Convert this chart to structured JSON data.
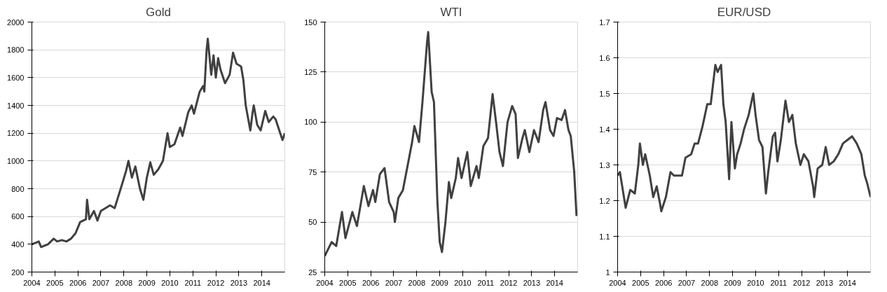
{
  "chart_data": [
    {
      "type": "line",
      "title": "Gold",
      "xlim": [
        2004,
        2015
      ],
      "xticks": [
        2004,
        2005,
        2006,
        2007,
        2008,
        2009,
        2010,
        2011,
        2012,
        2013,
        2014
      ],
      "ylim": [
        200,
        2000
      ],
      "yticks": [
        200,
        400,
        600,
        800,
        1000,
        1200,
        1400,
        1600,
        1800,
        2000
      ],
      "grid": "y",
      "series": [
        {
          "color": "#404040",
          "x": [
            2004,
            2004.3,
            2004.4,
            2004.7,
            2004.95,
            2005.1,
            2005.3,
            2005.5,
            2005.7,
            2005.9,
            2006.1,
            2006.35,
            2006.4,
            2006.5,
            2006.7,
            2006.85,
            2007.0,
            2007.2,
            2007.4,
            2007.6,
            2007.75,
            2007.9,
            2008.1,
            2008.2,
            2008.35,
            2008.5,
            2008.6,
            2008.7,
            2008.85,
            2009.0,
            2009.15,
            2009.3,
            2009.5,
            2009.7,
            2009.9,
            2010.0,
            2010.2,
            2010.45,
            2010.55,
            2010.8,
            2010.95,
            2011.05,
            2011.3,
            2011.45,
            2011.5,
            2011.6,
            2011.65,
            2011.8,
            2011.9,
            2012.0,
            2012.1,
            2012.2,
            2012.4,
            2012.6,
            2012.75,
            2012.9,
            2013.1,
            2013.2,
            2013.3,
            2013.5,
            2013.6,
            2013.65,
            2013.8,
            2013.95,
            2014.15,
            2014.3,
            2014.5,
            2014.6,
            2014.8,
            2014.9,
            2015.0
          ],
          "values": [
            400,
            420,
            380,
            400,
            440,
            420,
            430,
            420,
            440,
            480,
            560,
            580,
            720,
            580,
            640,
            570,
            640,
            660,
            680,
            660,
            740,
            820,
            930,
            1000,
            880,
            960,
            880,
            800,
            720,
            880,
            990,
            900,
            940,
            1000,
            1200,
            1100,
            1120,
            1240,
            1180,
            1350,
            1400,
            1340,
            1500,
            1540,
            1500,
            1800,
            1880,
            1620,
            1760,
            1600,
            1740,
            1660,
            1560,
            1620,
            1780,
            1700,
            1680,
            1580,
            1400,
            1220,
            1350,
            1400,
            1260,
            1220,
            1360,
            1280,
            1320,
            1300,
            1200,
            1150,
            1200
          ]
        }
      ]
    },
    {
      "type": "line",
      "title": "WTI",
      "xlim": [
        2004,
        2015
      ],
      "xticks": [
        2004,
        2005,
        2006,
        2007,
        2008,
        2009,
        2010,
        2011,
        2012,
        2013,
        2014
      ],
      "ylim": [
        25,
        150
      ],
      "yticks": [
        25,
        50,
        75,
        100,
        125,
        150
      ],
      "grid": "y",
      "series": [
        {
          "color": "#404040",
          "x": [
            2004,
            2004.3,
            2004.5,
            2004.75,
            2004.9,
            2005.2,
            2005.4,
            2005.7,
            2005.9,
            2006.1,
            2006.2,
            2006.4,
            2006.6,
            2006.8,
            2007.0,
            2007.05,
            2007.2,
            2007.4,
            2007.6,
            2007.8,
            2007.9,
            2008.1,
            2008.25,
            2008.45,
            2008.5,
            2008.65,
            2008.75,
            2008.9,
            2009.0,
            2009.1,
            2009.25,
            2009.4,
            2009.5,
            2009.7,
            2009.8,
            2009.95,
            2010.2,
            2010.35,
            2010.6,
            2010.7,
            2010.9,
            2011.1,
            2011.3,
            2011.45,
            2011.6,
            2011.75,
            2011.95,
            2012.15,
            2012.3,
            2012.4,
            2012.6,
            2012.7,
            2012.9,
            2013.1,
            2013.3,
            2013.5,
            2013.6,
            2013.8,
            2013.95,
            2014.1,
            2014.3,
            2014.45,
            2014.6,
            2014.7,
            2014.85,
            2014.95
          ],
          "values": [
            33,
            40,
            38,
            55,
            42,
            55,
            48,
            68,
            58,
            66,
            60,
            74,
            77,
            60,
            55,
            50,
            62,
            66,
            78,
            90,
            98,
            90,
            110,
            140,
            145,
            115,
            110,
            60,
            40,
            35,
            50,
            70,
            62,
            72,
            82,
            72,
            85,
            68,
            78,
            72,
            88,
            92,
            114,
            100,
            85,
            78,
            100,
            108,
            104,
            82,
            92,
            96,
            85,
            96,
            90,
            106,
            110,
            96,
            93,
            102,
            101,
            106,
            96,
            93,
            75,
            53
          ]
        }
      ]
    },
    {
      "type": "line",
      "title": "EUR/USD",
      "xlim": [
        2004,
        2015
      ],
      "xticks": [
        2004,
        2005,
        2006,
        2007,
        2008,
        2009,
        2010,
        2011,
        2012,
        2013,
        2014
      ],
      "ylim": [
        1,
        1.7
      ],
      "yticks": [
        1,
        1.1,
        1.2,
        1.3,
        1.4,
        1.5,
        1.6,
        1.7
      ],
      "grid": "y",
      "series": [
        {
          "color": "#404040",
          "x": [
            2004,
            2004.1,
            2004.3,
            2004.35,
            2004.55,
            2004.75,
            2004.9,
            2004.97,
            2005.1,
            2005.2,
            2005.4,
            2005.55,
            2005.7,
            2005.85,
            2005.9,
            2006.1,
            2006.3,
            2006.45,
            2006.6,
            2006.8,
            2006.95,
            2007.2,
            2007.35,
            2007.5,
            2007.7,
            2007.9,
            2008.05,
            2008.25,
            2008.35,
            2008.5,
            2008.6,
            2008.7,
            2008.85,
            2008.95,
            2009.1,
            2009.2,
            2009.35,
            2009.5,
            2009.7,
            2009.9,
            2010.0,
            2010.15,
            2010.3,
            2010.45,
            2010.55,
            2010.75,
            2010.85,
            2010.95,
            2011.1,
            2011.3,
            2011.45,
            2011.6,
            2011.75,
            2011.95,
            2012.1,
            2012.3,
            2012.5,
            2012.55,
            2012.7,
            2012.9,
            2013.05,
            2013.2,
            2013.4,
            2013.6,
            2013.8,
            2014.0,
            2014.2,
            2014.4,
            2014.6,
            2014.75,
            2014.85,
            2015.0
          ],
          "values": [
            1.27,
            1.28,
            1.2,
            1.18,
            1.23,
            1.22,
            1.3,
            1.36,
            1.3,
            1.33,
            1.27,
            1.21,
            1.24,
            1.19,
            1.17,
            1.21,
            1.28,
            1.27,
            1.27,
            1.27,
            1.32,
            1.33,
            1.36,
            1.36,
            1.41,
            1.47,
            1.47,
            1.58,
            1.56,
            1.58,
            1.47,
            1.42,
            1.26,
            1.42,
            1.29,
            1.33,
            1.36,
            1.4,
            1.44,
            1.5,
            1.44,
            1.37,
            1.35,
            1.22,
            1.28,
            1.38,
            1.39,
            1.31,
            1.37,
            1.48,
            1.42,
            1.44,
            1.36,
            1.3,
            1.33,
            1.31,
            1.24,
            1.21,
            1.29,
            1.3,
            1.35,
            1.3,
            1.31,
            1.33,
            1.36,
            1.37,
            1.38,
            1.36,
            1.33,
            1.27,
            1.25,
            1.21
          ]
        }
      ]
    }
  ]
}
